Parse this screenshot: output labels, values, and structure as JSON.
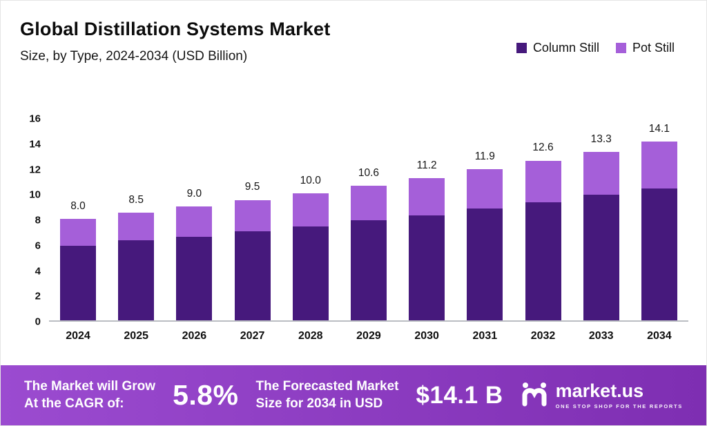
{
  "header": {
    "title": "Global Distillation Systems Market",
    "subtitle": "Size, by Type, 2024-2034 (USD Billion)"
  },
  "legend": [
    {
      "label": "Column Still",
      "color": "#46197c"
    },
    {
      "label": "Pot Still",
      "color": "#a55fd9"
    }
  ],
  "chart_data": {
    "type": "bar",
    "stacked": true,
    "title": "Global Distillation Systems Market Size, by Type, 2024-2034 (USD Billion)",
    "categories": [
      "2024",
      "2025",
      "2026",
      "2027",
      "2028",
      "2029",
      "2030",
      "2031",
      "2032",
      "2033",
      "2034"
    ],
    "series": [
      {
        "name": "Column Still",
        "color": "#46197c",
        "values": [
          5.9,
          6.3,
          6.6,
          7.0,
          7.4,
          7.9,
          8.3,
          8.8,
          9.3,
          9.9,
          10.4
        ]
      },
      {
        "name": "Pot Still",
        "color": "#a55fd9",
        "values": [
          2.1,
          2.2,
          2.4,
          2.5,
          2.6,
          2.7,
          2.9,
          3.1,
          3.3,
          3.4,
          3.7
        ]
      }
    ],
    "totals": [
      8.0,
      8.5,
      9.0,
      9.5,
      10.0,
      10.6,
      11.2,
      11.9,
      12.6,
      13.3,
      14.1
    ],
    "total_labels": [
      "8.0",
      "8.5",
      "9.0",
      "9.5",
      "10.0",
      "10.6",
      "11.2",
      "11.9",
      "12.6",
      "13.3",
      "14.1"
    ],
    "xlabel": "",
    "ylabel": "",
    "ylim": [
      0,
      16
    ],
    "yticks": [
      0,
      2,
      4,
      6,
      8,
      10,
      12,
      14,
      16
    ],
    "grid": false,
    "legend_position": "top-right"
  },
  "banner": {
    "cagr_label_line1": "The Market will Grow",
    "cagr_label_line2": "At the CAGR of:",
    "cagr_value": "5.8%",
    "forecast_label_line1": "The Forecasted Market",
    "forecast_label_line2": "Size for 2034 in USD",
    "forecast_value": "$14.1 B",
    "brand": "market.us",
    "brand_tagline": "ONE STOP SHOP FOR THE REPORTS",
    "gradient": [
      "#9b4bd0",
      "#7e2eb2"
    ]
  }
}
